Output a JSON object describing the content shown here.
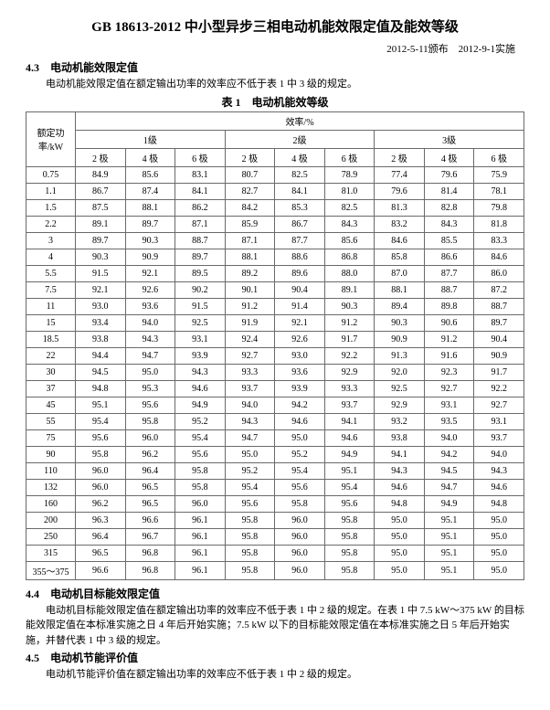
{
  "title": "GB 18613-2012 中小型异步三相电动机能效限定值及能效等级",
  "date_line": "2012-5-11颁布　2012-9-1实施",
  "section43_head": "4.3　电动机能效限定值",
  "section43_body": "电动机能效限定值在额定输出功率的效率应不低于表 1 中 3 级的规定。",
  "table_caption": "表 1　电动机能效等级",
  "header": {
    "kw_label": "额定功率/kW",
    "eff_label": "效率/%",
    "level1": "1级",
    "level2": "2级",
    "level3": "3级",
    "pole2": "2 极",
    "pole4": "4 极",
    "pole6": "6 极"
  },
  "rows": [
    {
      "kw": "0.75",
      "v": [
        "84.9",
        "85.6",
        "83.1",
        "80.7",
        "82.5",
        "78.9",
        "77.4",
        "79.6",
        "75.9"
      ]
    },
    {
      "kw": "1.1",
      "v": [
        "86.7",
        "87.4",
        "84.1",
        "82.7",
        "84.1",
        "81.0",
        "79.6",
        "81.4",
        "78.1"
      ]
    },
    {
      "kw": "1.5",
      "v": [
        "87.5",
        "88.1",
        "86.2",
        "84.2",
        "85.3",
        "82.5",
        "81.3",
        "82.8",
        "79.8"
      ]
    },
    {
      "kw": "2.2",
      "v": [
        "89.1",
        "89.7",
        "87.1",
        "85.9",
        "86.7",
        "84.3",
        "83.2",
        "84.3",
        "81.8"
      ]
    },
    {
      "kw": "3",
      "v": [
        "89.7",
        "90.3",
        "88.7",
        "87.1",
        "87.7",
        "85.6",
        "84.6",
        "85.5",
        "83.3"
      ]
    },
    {
      "kw": "4",
      "v": [
        "90.3",
        "90.9",
        "89.7",
        "88.1",
        "88.6",
        "86.8",
        "85.8",
        "86.6",
        "84.6"
      ]
    },
    {
      "kw": "5.5",
      "v": [
        "91.5",
        "92.1",
        "89.5",
        "89.2",
        "89.6",
        "88.0",
        "87.0",
        "87.7",
        "86.0"
      ]
    },
    {
      "kw": "7.5",
      "v": [
        "92.1",
        "92.6",
        "90.2",
        "90.1",
        "90.4",
        "89.1",
        "88.1",
        "88.7",
        "87.2"
      ]
    },
    {
      "kw": "11",
      "v": [
        "93.0",
        "93.6",
        "91.5",
        "91.2",
        "91.4",
        "90.3",
        "89.4",
        "89.8",
        "88.7"
      ]
    },
    {
      "kw": "15",
      "v": [
        "93.4",
        "94.0",
        "92.5",
        "91.9",
        "92.1",
        "91.2",
        "90.3",
        "90.6",
        "89.7"
      ]
    },
    {
      "kw": "18.5",
      "v": [
        "93.8",
        "94.3",
        "93.1",
        "92.4",
        "92.6",
        "91.7",
        "90.9",
        "91.2",
        "90.4"
      ]
    },
    {
      "kw": "22",
      "v": [
        "94.4",
        "94.7",
        "93.9",
        "92.7",
        "93.0",
        "92.2",
        "91.3",
        "91.6",
        "90.9"
      ]
    },
    {
      "kw": "30",
      "v": [
        "94.5",
        "95.0",
        "94.3",
        "93.3",
        "93.6",
        "92.9",
        "92.0",
        "92.3",
        "91.7"
      ]
    },
    {
      "kw": "37",
      "v": [
        "94.8",
        "95.3",
        "94.6",
        "93.7",
        "93.9",
        "93.3",
        "92.5",
        "92.7",
        "92.2"
      ]
    },
    {
      "kw": "45",
      "v": [
        "95.1",
        "95.6",
        "94.9",
        "94.0",
        "94.2",
        "93.7",
        "92.9",
        "93.1",
        "92.7"
      ]
    },
    {
      "kw": "55",
      "v": [
        "95.4",
        "95.8",
        "95.2",
        "94.3",
        "94.6",
        "94.1",
        "93.2",
        "93.5",
        "93.1"
      ]
    },
    {
      "kw": "75",
      "v": [
        "95.6",
        "96.0",
        "95.4",
        "94.7",
        "95.0",
        "94.6",
        "93.8",
        "94.0",
        "93.7"
      ]
    },
    {
      "kw": "90",
      "v": [
        "95.8",
        "96.2",
        "95.6",
        "95.0",
        "95.2",
        "94.9",
        "94.1",
        "94.2",
        "94.0"
      ]
    },
    {
      "kw": "110",
      "v": [
        "96.0",
        "96.4",
        "95.8",
        "95.2",
        "95.4",
        "95.1",
        "94.3",
        "94.5",
        "94.3"
      ]
    },
    {
      "kw": "132",
      "v": [
        "96.0",
        "96.5",
        "95.8",
        "95.4",
        "95.6",
        "95.4",
        "94.6",
        "94.7",
        "94.6"
      ]
    },
    {
      "kw": "160",
      "v": [
        "96.2",
        "96.5",
        "96.0",
        "95.6",
        "95.8",
        "95.6",
        "94.8",
        "94.9",
        "94.8"
      ]
    },
    {
      "kw": "200",
      "v": [
        "96.3",
        "96.6",
        "96.1",
        "95.8",
        "96.0",
        "95.8",
        "95.0",
        "95.1",
        "95.0"
      ]
    },
    {
      "kw": "250",
      "v": [
        "96.4",
        "96.7",
        "96.1",
        "95.8",
        "96.0",
        "95.8",
        "95.0",
        "95.1",
        "95.0"
      ]
    },
    {
      "kw": "315",
      "v": [
        "96.5",
        "96.8",
        "96.1",
        "95.8",
        "96.0",
        "95.8",
        "95.0",
        "95.1",
        "95.0"
      ]
    },
    {
      "kw": "355～375",
      "v": [
        "96.6",
        "96.8",
        "96.1",
        "95.8",
        "96.0",
        "95.8",
        "95.0",
        "95.1",
        "95.0"
      ]
    }
  ],
  "section44_head": "4.4　电动机目标能效限定值",
  "section44_body": "电动机目标能效限定值在额定输出功率的效率应不低于表 1 中 2 级的规定。在表 1 中 7.5 kW～375 kW 的目标能效限定值在本标准实施之日 4 年后开始实施；7.5 kW 以下的目标能效限定值在本标准实施之日 5 年后开始实施，并替代表 1 中 3 级的规定。",
  "section45_head": "4.5　电动机节能评价值",
  "section45_body": "电动机节能评价值在额定输出功率的效率应不低于表 1 中 2 级的规定。"
}
